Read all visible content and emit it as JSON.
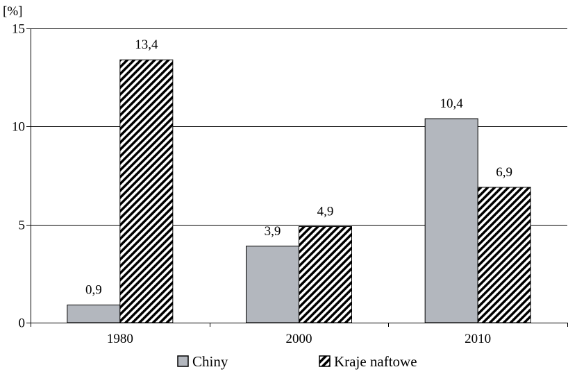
{
  "chart_data": {
    "type": "bar",
    "categories": [
      "1980",
      "2000",
      "2010"
    ],
    "series": [
      {
        "name": "Chiny",
        "values": [
          0.9,
          3.9,
          10.4
        ],
        "value_labels": [
          "0,9",
          "3,9",
          "10,4"
        ],
        "fill": "#b3b7be",
        "pattern": "solid"
      },
      {
        "name": "Kraje naftowe",
        "values": [
          13.4,
          4.9,
          6.9
        ],
        "value_labels": [
          "13,4",
          "4,9",
          "6,9"
        ],
        "fill": "#000000",
        "pattern": "diagonal-hatch"
      }
    ],
    "y_unit_label": "[%]",
    "ylim": [
      0,
      15
    ],
    "yticks": [
      0,
      5,
      10,
      15
    ],
    "ytick_labels": [
      "0",
      "5",
      "10",
      "15"
    ],
    "grid": true,
    "legend_position": "bottom"
  }
}
